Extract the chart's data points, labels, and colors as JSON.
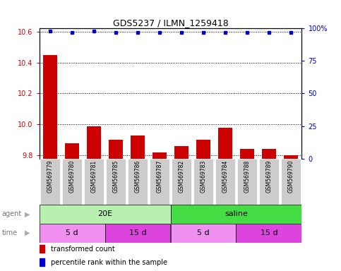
{
  "title": "GDS5237 / ILMN_1259418",
  "samples": [
    "GSM569779",
    "GSM569780",
    "GSM569781",
    "GSM569785",
    "GSM569786",
    "GSM569787",
    "GSM569782",
    "GSM569783",
    "GSM569784",
    "GSM569788",
    "GSM569789",
    "GSM569790"
  ],
  "bar_values": [
    10.45,
    9.88,
    9.99,
    9.9,
    9.93,
    9.82,
    9.86,
    9.9,
    9.98,
    9.84,
    9.84,
    9.8
  ],
  "percentile_values": [
    98,
    97,
    98,
    97,
    97,
    97,
    97,
    97,
    97,
    97,
    97,
    97
  ],
  "ylim_left": [
    9.78,
    10.62
  ],
  "ylim_right": [
    0,
    100
  ],
  "yticks_left": [
    9.8,
    10.0,
    10.2,
    10.4,
    10.6
  ],
  "yticks_right": [
    0,
    25,
    50,
    75,
    100
  ],
  "ytick_right_labels": [
    "0",
    "25",
    "50",
    "75",
    "100%"
  ],
  "bar_color": "#cc0000",
  "dot_color": "#0000cc",
  "agent_row": [
    {
      "label": "20E",
      "start": 0,
      "end": 6,
      "color": "#b8f0b0"
    },
    {
      "label": "saline",
      "start": 6,
      "end": 12,
      "color": "#44dd44"
    }
  ],
  "time_row": [
    {
      "label": "5 d",
      "start": 0,
      "end": 3,
      "color": "#f090f0"
    },
    {
      "label": "15 d",
      "start": 3,
      "end": 6,
      "color": "#dd44dd"
    },
    {
      "label": "5 d",
      "start": 6,
      "end": 9,
      "color": "#f090f0"
    },
    {
      "label": "15 d",
      "start": 9,
      "end": 12,
      "color": "#dd44dd"
    }
  ],
  "legend_bar_label": "transformed count",
  "legend_dot_label": "percentile rank within the sample",
  "tick_bg_color": "#cccccc"
}
